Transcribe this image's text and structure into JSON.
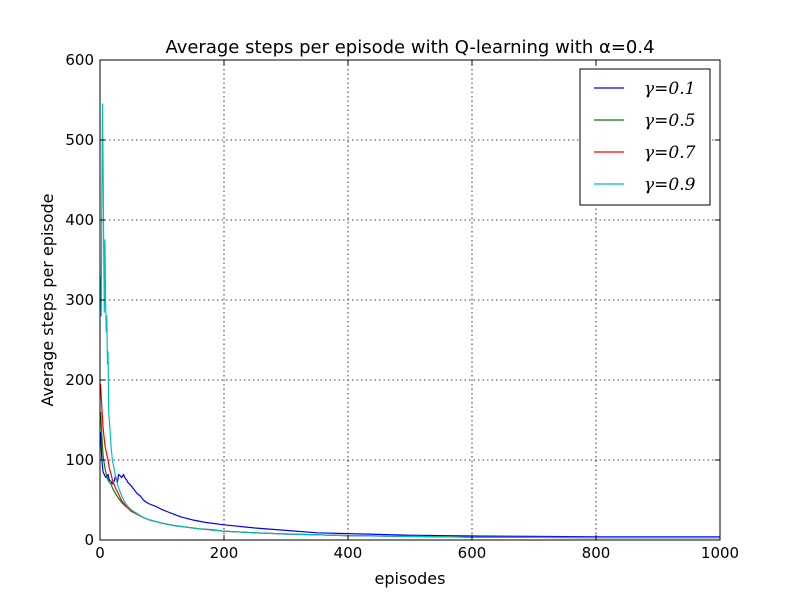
{
  "chart_data": {
    "type": "line",
    "title": "Average steps per episode with Q-learning with α=0.4",
    "xlabel": "episodes",
    "ylabel": "Average steps per episode",
    "xlim": [
      0,
      1000
    ],
    "ylim": [
      0,
      600
    ],
    "xticks": [
      0,
      200,
      400,
      600,
      800,
      1000
    ],
    "yticks": [
      0,
      100,
      200,
      300,
      400,
      500,
      600
    ],
    "xtick_labels": [
      "0",
      "200",
      "400",
      "600",
      "800",
      "1000"
    ],
    "ytick_labels": [
      "0",
      "100",
      "200",
      "300",
      "400",
      "500",
      "600"
    ],
    "grid": true,
    "legend_position": "top-right",
    "series": [
      {
        "name": "γ=0.1",
        "color": "#0000ff",
        "points": [
          [
            1,
            135
          ],
          [
            3,
            100
          ],
          [
            5,
            85
          ],
          [
            8,
            80
          ],
          [
            10,
            78
          ],
          [
            13,
            82
          ],
          [
            15,
            75
          ],
          [
            18,
            73
          ],
          [
            20,
            70
          ],
          [
            23,
            74
          ],
          [
            25,
            80
          ],
          [
            28,
            72
          ],
          [
            30,
            82
          ],
          [
            33,
            80
          ],
          [
            35,
            78
          ],
          [
            38,
            82
          ],
          [
            40,
            78
          ],
          [
            43,
            75
          ],
          [
            45,
            72
          ],
          [
            50,
            68
          ],
          [
            55,
            63
          ],
          [
            60,
            58
          ],
          [
            65,
            55
          ],
          [
            70,
            50
          ],
          [
            75,
            47
          ],
          [
            80,
            45
          ],
          [
            90,
            42
          ],
          [
            100,
            38
          ],
          [
            110,
            35
          ],
          [
            120,
            32
          ],
          [
            130,
            29
          ],
          [
            140,
            27
          ],
          [
            150,
            25
          ],
          [
            170,
            22
          ],
          [
            200,
            19
          ],
          [
            250,
            15
          ],
          [
            300,
            12
          ],
          [
            350,
            9
          ],
          [
            400,
            8
          ],
          [
            450,
            7
          ],
          [
            500,
            6
          ],
          [
            600,
            5
          ],
          [
            700,
            4.5
          ],
          [
            800,
            4
          ],
          [
            900,
            4
          ],
          [
            1000,
            4
          ]
        ]
      },
      {
        "name": "γ=0.5",
        "color": "#008000",
        "points": [
          [
            1,
            160
          ],
          [
            3,
            130
          ],
          [
            5,
            105
          ],
          [
            8,
            90
          ],
          [
            10,
            82
          ],
          [
            13,
            75
          ],
          [
            15,
            72
          ],
          [
            18,
            70
          ],
          [
            20,
            65
          ],
          [
            25,
            58
          ],
          [
            30,
            52
          ],
          [
            35,
            47
          ],
          [
            40,
            43
          ],
          [
            45,
            40
          ],
          [
            50,
            36
          ],
          [
            60,
            32
          ],
          [
            70,
            28
          ],
          [
            80,
            25
          ],
          [
            90,
            23
          ],
          [
            100,
            21
          ],
          [
            120,
            18
          ],
          [
            140,
            16
          ],
          [
            160,
            14
          ],
          [
            180,
            13
          ],
          [
            200,
            11
          ],
          [
            250,
            9
          ],
          [
            300,
            7.5
          ],
          [
            350,
            6.5
          ],
          [
            400,
            5.5
          ],
          [
            500,
            4.5
          ],
          [
            600,
            3.5
          ],
          [
            800,
            3
          ],
          [
            1000,
            3
          ]
        ]
      },
      {
        "name": "γ=0.7",
        "color": "#ff0000",
        "points": [
          [
            1,
            195
          ],
          [
            3,
            165
          ],
          [
            5,
            140
          ],
          [
            8,
            118
          ],
          [
            10,
            110
          ],
          [
            13,
            100
          ],
          [
            15,
            90
          ],
          [
            18,
            82
          ],
          [
            20,
            75
          ],
          [
            25,
            65
          ],
          [
            30,
            57
          ],
          [
            35,
            49
          ],
          [
            40,
            44
          ],
          [
            45,
            40
          ],
          [
            50,
            37
          ],
          [
            60,
            32
          ],
          [
            70,
            28
          ],
          [
            80,
            25
          ],
          [
            90,
            23
          ],
          [
            100,
            21
          ],
          [
            120,
            18
          ],
          [
            140,
            16
          ],
          [
            160,
            14
          ],
          [
            180,
            12.5
          ],
          [
            200,
            11
          ],
          [
            250,
            9
          ],
          [
            300,
            7.5
          ],
          [
            350,
            6.5
          ],
          [
            400,
            5.5
          ],
          [
            500,
            4.5
          ],
          [
            600,
            3.5
          ],
          [
            800,
            3
          ],
          [
            1000,
            3
          ]
        ]
      },
      {
        "name": "γ=0.9",
        "color": "#00bfbf",
        "points": [
          [
            1,
            330
          ],
          [
            2,
            280
          ],
          [
            3,
            430
          ],
          [
            4,
            545
          ],
          [
            5,
            470
          ],
          [
            6,
            360
          ],
          [
            7,
            285
          ],
          [
            8,
            375
          ],
          [
            9,
            300
          ],
          [
            10,
            260
          ],
          [
            11,
            280
          ],
          [
            12,
            220
          ],
          [
            13,
            235
          ],
          [
            14,
            160
          ],
          [
            15,
            150
          ],
          [
            16,
            140
          ],
          [
            18,
            115
          ],
          [
            20,
            100
          ],
          [
            22,
            92
          ],
          [
            25,
            80
          ],
          [
            28,
            70
          ],
          [
            30,
            65
          ],
          [
            35,
            55
          ],
          [
            40,
            47
          ],
          [
            45,
            42
          ],
          [
            50,
            38
          ],
          [
            60,
            33
          ],
          [
            70,
            28
          ],
          [
            80,
            25
          ],
          [
            90,
            23
          ],
          [
            100,
            21
          ],
          [
            120,
            18
          ],
          [
            140,
            16
          ],
          [
            160,
            14
          ],
          [
            180,
            12.5
          ],
          [
            200,
            11
          ],
          [
            250,
            9
          ],
          [
            300,
            7.5
          ],
          [
            350,
            6.5
          ],
          [
            400,
            5.5
          ],
          [
            500,
            4.5
          ],
          [
            600,
            3.5
          ],
          [
            800,
            3
          ],
          [
            1000,
            3
          ]
        ]
      }
    ]
  }
}
